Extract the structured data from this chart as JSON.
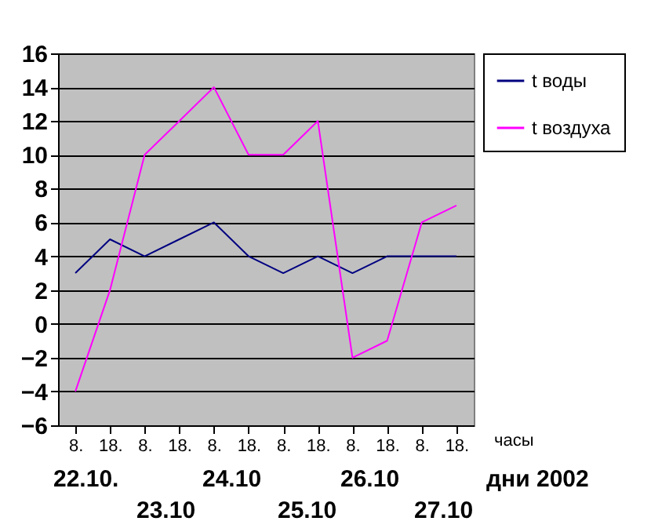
{
  "chart_data": {
    "type": "line",
    "categories": [
      "8.",
      "18.",
      "8.",
      "18.",
      "8.",
      "18.",
      "8.",
      "18.",
      "8.",
      "18.",
      "8.",
      "18."
    ],
    "series": [
      {
        "name": "t воды",
        "color": "#000080",
        "values": [
          3,
          5,
          4,
          5,
          6,
          4,
          3,
          4,
          3,
          4,
          4,
          4
        ]
      },
      {
        "name": "t воздуха",
        "color": "#ff00ff",
        "values": [
          -4,
          2,
          10,
          12,
          14,
          10,
          10,
          12,
          -2,
          -1,
          6,
          7
        ]
      }
    ],
    "ylim": [
      -6,
      16
    ],
    "yticks": [
      -6,
      -4,
      -2,
      0,
      2,
      4,
      6,
      8,
      10,
      12,
      14,
      16
    ],
    "grid": "y",
    "legend": "right",
    "marker": "none",
    "annotations": [
      "часы",
      "22.10.",
      "23.10",
      "24.10",
      "25.10",
      "26.10",
      "27.10",
      "дни 2002"
    ]
  }
}
